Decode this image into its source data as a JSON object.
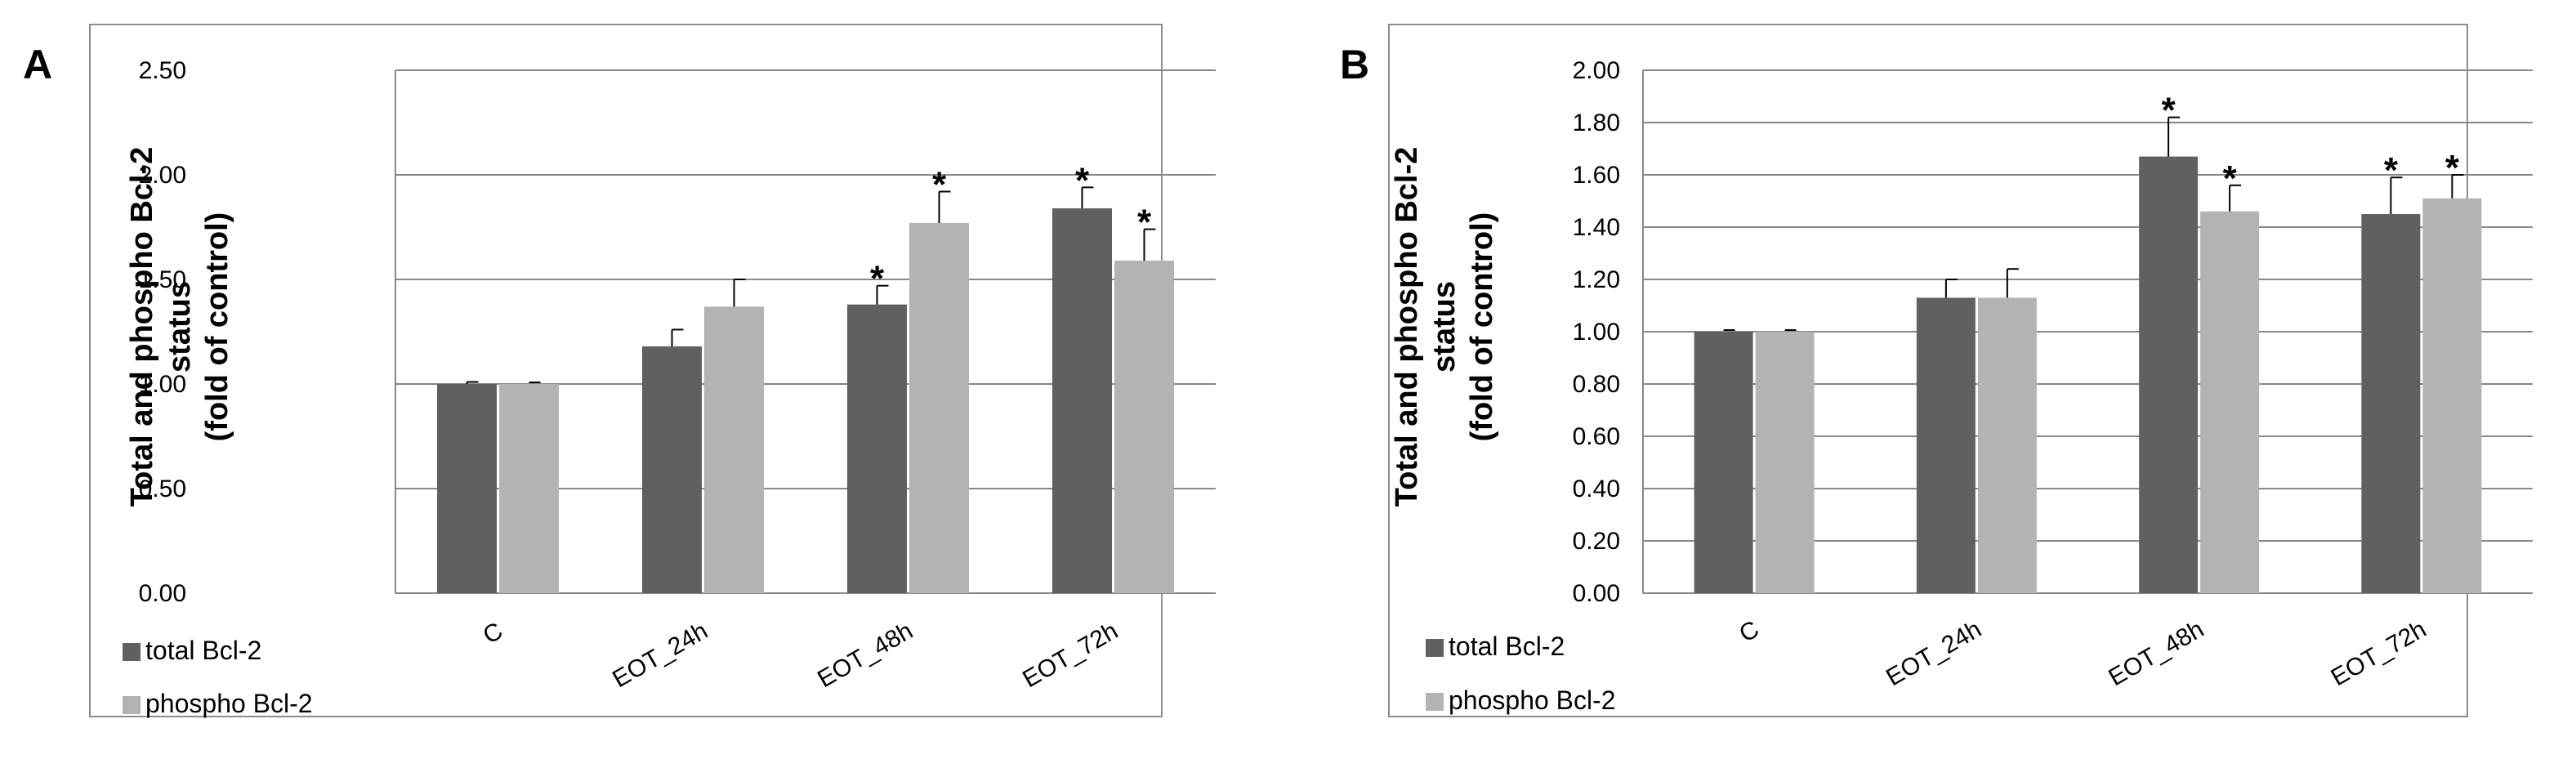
{
  "colors": {
    "total": "#606060",
    "phospho": "#b3b3b3",
    "grid": "#878787",
    "frame": "#8c8c8c",
    "text": "#000000"
  },
  "chart_data": [
    {
      "type": "bar",
      "panel_label": "A",
      "ylabel": "Total and phospho Bcl-2 status (fold of control)",
      "ylabel_lines": [
        "Total and phospho Bcl-2",
        "status",
        "(fold of control)"
      ],
      "categories": [
        "C",
        "EOT_24h",
        "EOT_48h",
        "EOT_72h"
      ],
      "ylim": [
        0,
        2.5
      ],
      "yticks": [
        "0.00",
        "0.50",
        "1.00",
        "1.50",
        "2.00",
        "2.50"
      ],
      "grid": true,
      "legend_position": "bottom-left",
      "series": [
        {
          "name": "total Bcl-2",
          "values": [
            1.0,
            1.18,
            1.38,
            1.84
          ],
          "errors": [
            0.01,
            0.08,
            0.09,
            0.1
          ],
          "significant": [
            false,
            false,
            true,
            true
          ]
        },
        {
          "name": "phospho Bcl-2",
          "values": [
            1.0,
            1.37,
            1.77,
            1.59
          ],
          "errors": [
            0.0,
            0.13,
            0.15,
            0.15
          ],
          "significant": [
            false,
            false,
            true,
            true
          ]
        }
      ],
      "significance_marker": "*"
    },
    {
      "type": "bar",
      "panel_label": "B",
      "ylabel": "Total and phospho Bcl-2 status (fold of control)",
      "ylabel_lines": [
        "Total and phospho Bcl-2",
        "status",
        "(fold of control)"
      ],
      "categories": [
        "C",
        "EOT_24h",
        "EOT_48h",
        "EOT_72h"
      ],
      "ylim": [
        0,
        2.0
      ],
      "yticks": [
        "0.00",
        "0.20",
        "0.40",
        "0.60",
        "0.80",
        "1.00",
        "1.20",
        "1.40",
        "1.60",
        "1.80",
        "2.00"
      ],
      "grid": true,
      "legend_position": "bottom-left",
      "series": [
        {
          "name": "total Bcl-2",
          "values": [
            1.0,
            1.13,
            1.67,
            1.45
          ],
          "errors": [
            0.0,
            0.07,
            0.15,
            0.14
          ],
          "significant": [
            false,
            false,
            true,
            true
          ]
        },
        {
          "name": "phospho Bcl-2",
          "values": [
            1.0,
            1.13,
            1.46,
            1.51
          ],
          "errors": [
            0.0,
            0.11,
            0.1,
            0.09
          ],
          "significant": [
            false,
            false,
            true,
            true
          ]
        }
      ],
      "significance_marker": "*"
    }
  ]
}
